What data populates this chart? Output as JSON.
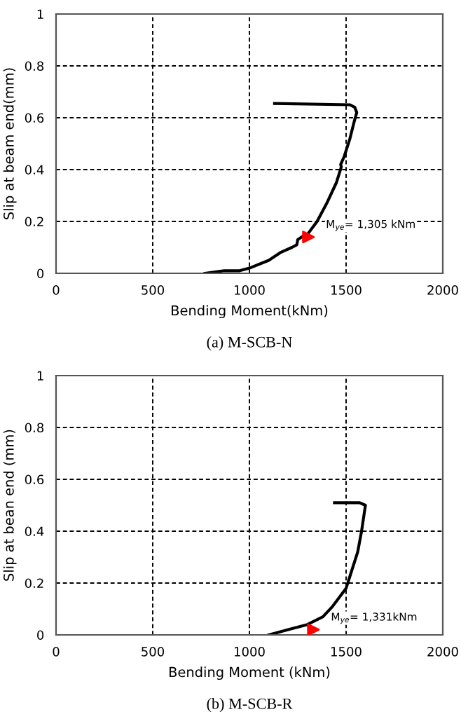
{
  "chart_data": [
    {
      "type": "line",
      "title": "(a) M-SCB-N",
      "xlabel": "Bending Moment(kNm)",
      "ylabel": "Slip at beam end(mm)",
      "xlim": [
        0,
        2000
      ],
      "xticks": [
        0,
        500,
        1000,
        1500,
        2000
      ],
      "ylim": [
        0,
        1
      ],
      "yticks": [
        0,
        0.2,
        0.4,
        0.6,
        0.8,
        1
      ],
      "grid": true,
      "line_style": "solid",
      "series": [
        {
          "color": "#000000",
          "x": [
            770,
            870,
            950,
            1000,
            1100,
            1160,
            1220,
            1245,
            1250,
            1270,
            1300,
            1350,
            1400,
            1450,
            1475,
            1472,
            1490,
            1520,
            1540,
            1555,
            1545,
            1520,
            1130
          ],
          "values": [
            0,
            0.01,
            0.01,
            0.02,
            0.05,
            0.08,
            0.1,
            0.11,
            0.13,
            0.14,
            0.15,
            0.2,
            0.27,
            0.35,
            0.41,
            0.42,
            0.45,
            0.52,
            0.58,
            0.62,
            0.64,
            0.65,
            0.655
          ]
        },
        {
          "type": "scatter",
          "marker": "triangle",
          "color": "#ff0000",
          "x": [
            1305
          ],
          "values": [
            0.14
          ]
        }
      ],
      "annotations": [
        {
          "text": "M$_{ye}$= 1,305 kNm",
          "x": 1305,
          "y": 0.14
        }
      ]
    },
    {
      "type": "line",
      "title": "(b) M-SCB-R",
      "xlabel": "Bending Moment (kNm)",
      "ylabel": "Slip at bean end (mm)",
      "xlim": [
        0,
        2000
      ],
      "xticks": [
        0,
        500,
        1000,
        1500,
        2000
      ],
      "ylim": [
        0,
        1
      ],
      "yticks": [
        0,
        0.2,
        0.4,
        0.6,
        0.8,
        1
      ],
      "grid": true,
      "line_style": "solid",
      "series": [
        {
          "color": "#000000",
          "x": [
            1100,
            1200,
            1300,
            1380,
            1430,
            1500,
            1530,
            1560,
            1580,
            1600,
            1570,
            1440
          ],
          "values": [
            0,
            0.02,
            0.04,
            0.07,
            0.11,
            0.18,
            0.25,
            0.32,
            0.4,
            0.5,
            0.51,
            0.51
          ]
        },
        {
          "type": "scatter",
          "marker": "triangle",
          "color": "#ff0000",
          "x": [
            1331
          ],
          "values": [
            0.02
          ]
        }
      ],
      "annotations": [
        {
          "text": "M$_{ye}$= 1,331kNm",
          "x": 1331,
          "y": 0.02
        }
      ]
    }
  ]
}
